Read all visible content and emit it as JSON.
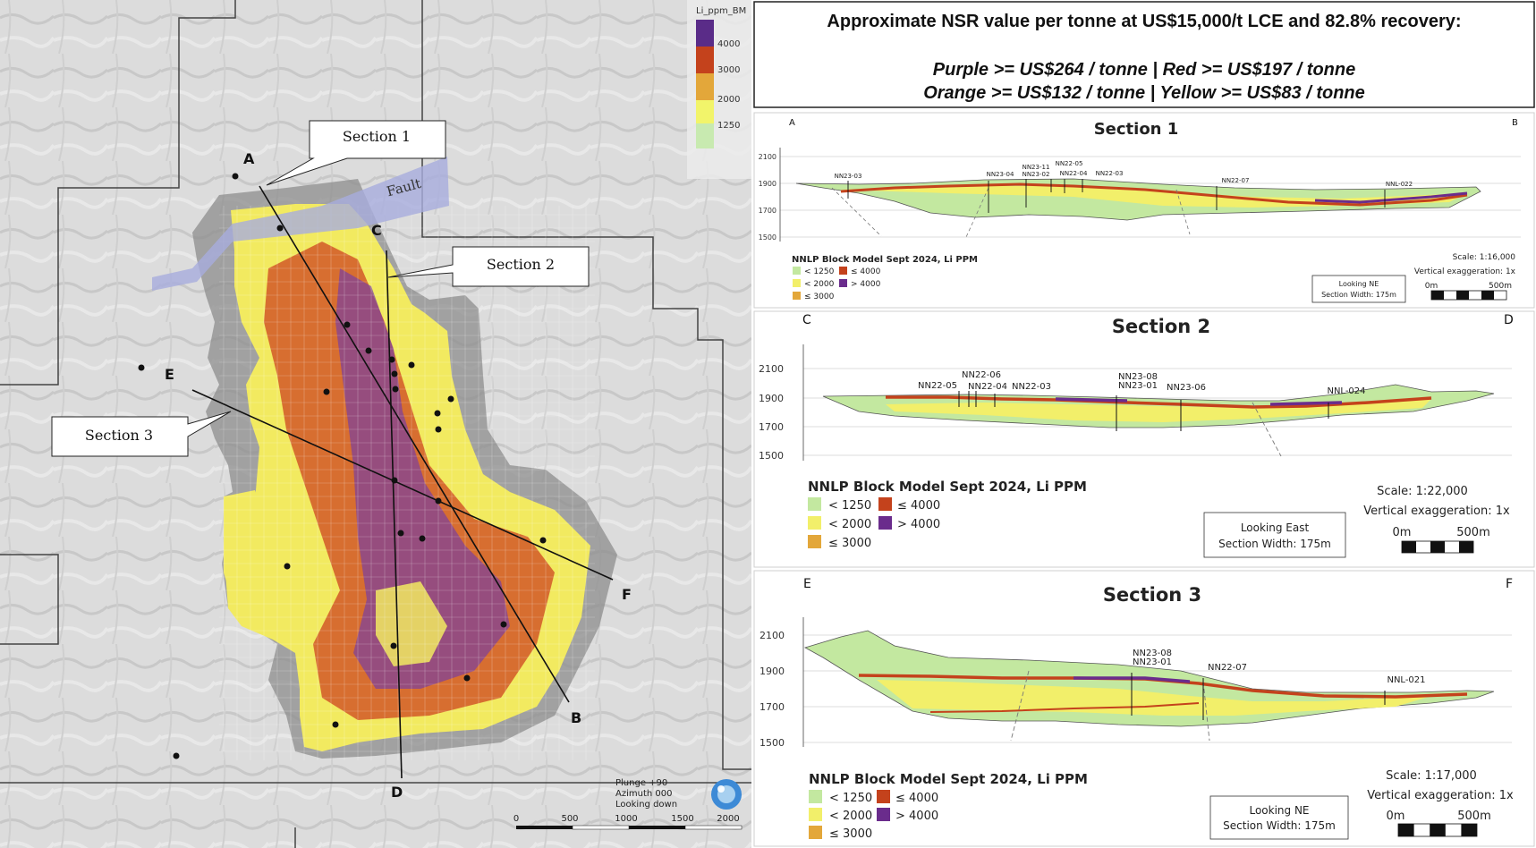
{
  "nsr": {
    "line1": "Approximate NSR value per tonne at US$15,000/t LCE and 82.8% recovery:",
    "line2": "Purple >= US$264 / tonne | Red >= US$197 / tonne",
    "line3": "Orange >= US$132 / tonne | Yellow >= US$83 / tonne"
  },
  "map": {
    "legend_title": "Li_ppm_BM",
    "legend_values": [
      "4000",
      "3000",
      "2000",
      "1250"
    ],
    "fault_label": "Fault",
    "callouts": [
      "Section 1",
      "Section 2",
      "Section 3"
    ],
    "point_labels": [
      "A",
      "B",
      "C",
      "D",
      "E",
      "F"
    ],
    "info_lines": [
      "Plunge +90",
      "Azimuth 000",
      "Looking down"
    ],
    "scale_ticks": [
      "0",
      "500",
      "1000",
      "1500",
      "2000"
    ]
  },
  "sections": [
    {
      "title": "Section 1",
      "left_end": "A",
      "right_end": "B",
      "elevations": [
        "2100",
        "1900",
        "1700",
        "1500"
      ],
      "holes": [
        "NN23-03",
        "NN23-04",
        "NN23-11",
        "NN23-02",
        "NN22-05",
        "NN22-04",
        "NN22-03",
        "NN22-07",
        "NNL-022"
      ],
      "model_title": "NNLP Block Model Sept 2024, Li PPM",
      "legend": [
        "< 1250",
        "≤ 4000",
        "< 2000",
        "> 4000",
        "≤ 3000"
      ],
      "scale": "Scale: 1:16,000",
      "vertical": "Vertical exaggeration: 1x",
      "looking": "Looking NE",
      "width": "Section Width: 175m",
      "bar_start": "0m",
      "bar_end": "500m"
    },
    {
      "title": "Section 2",
      "left_end": "C",
      "right_end": "D",
      "elevations": [
        "2100",
        "1900",
        "1700",
        "1500"
      ],
      "holes": [
        "NN22-05",
        "NN22-06",
        "NN22-04",
        "NN22-03",
        "NN23-08",
        "NN23-01",
        "NN23-06",
        "NNL-024"
      ],
      "model_title": "NNLP Block Model Sept 2024, Li PPM",
      "legend": [
        "< 1250",
        "≤ 4000",
        "< 2000",
        "> 4000",
        "≤ 3000"
      ],
      "scale": "Scale: 1:22,000",
      "vertical": "Vertical exaggeration: 1x",
      "looking": "Looking East",
      "width": "Section Width: 175m",
      "bar_start": "0m",
      "bar_end": "500m"
    },
    {
      "title": "Section 3",
      "left_end": "E",
      "right_end": "F",
      "elevations": [
        "2100",
        "1900",
        "1700",
        "1500"
      ],
      "holes": [
        "NN23-08",
        "NN23-01",
        "NN22-07",
        "NNL-021"
      ],
      "model_title": "NNLP Block Model Sept 2024, Li PPM",
      "legend": [
        "< 1250",
        "≤ 4000",
        "< 2000",
        "> 4000",
        "≤ 3000"
      ],
      "scale": "Scale: 1:17,000",
      "vertical": "Vertical exaggeration: 1x",
      "looking": "Looking NE",
      "width": "Section Width: 175m",
      "bar_start": "0m",
      "bar_end": "500m"
    }
  ],
  "colors": {
    "purple": "#6a2c8c",
    "red": "#c4421c",
    "orange": "#e3a73a",
    "yellow": "#f5f268",
    "green": "#c3e8a0",
    "fault": "#a8acdd"
  }
}
